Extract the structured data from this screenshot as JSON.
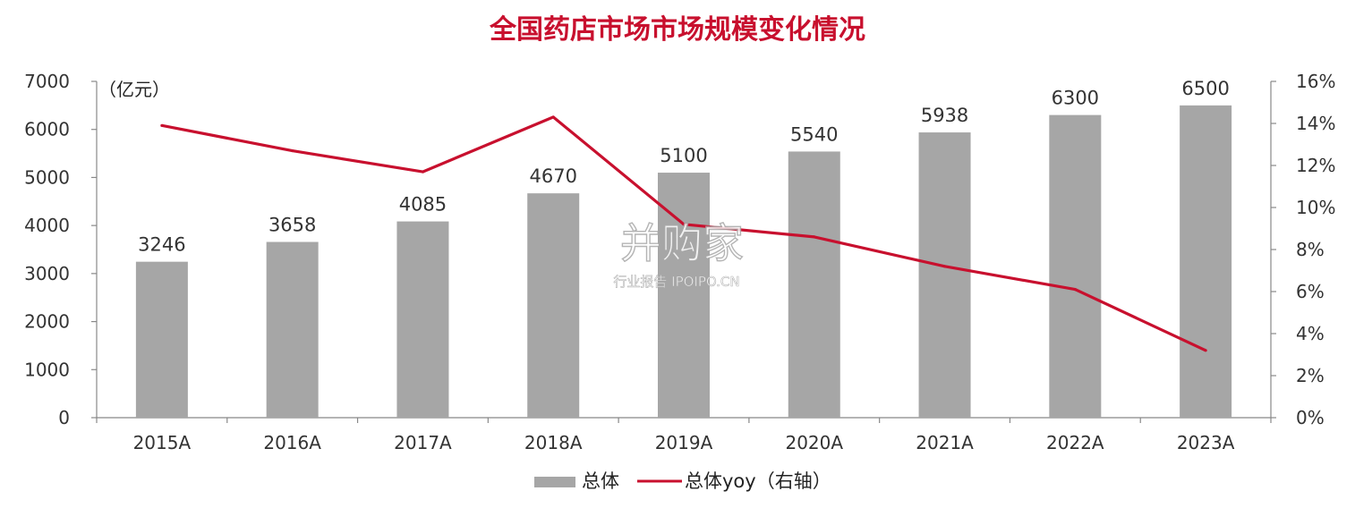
{
  "chart_data": {
    "type": "bar",
    "title": "全国药店市场市场规模变化情况",
    "unit_label": "（亿元）",
    "categories": [
      "2015A",
      "2016A",
      "2017A",
      "2018A",
      "2019A",
      "2020A",
      "2021A",
      "2022A",
      "2023A"
    ],
    "series": [
      {
        "name": "总体",
        "type": "bar",
        "axis": "left",
        "color": "#a6a6a6",
        "values": [
          3246,
          3658,
          4085,
          4670,
          5100,
          5540,
          5938,
          6300,
          6500
        ]
      },
      {
        "name": "总体yoy（右轴）",
        "type": "line",
        "axis": "right",
        "color": "#c8102e",
        "values": [
          13.9,
          12.7,
          11.7,
          14.3,
          9.2,
          8.6,
          7.2,
          6.1,
          3.2
        ]
      }
    ],
    "y_left": {
      "min": 0,
      "max": 7000,
      "ticks": [
        "0",
        "1000",
        "2000",
        "3000",
        "4000",
        "5000",
        "6000",
        "7000"
      ]
    },
    "y_right": {
      "min": 0,
      "max": 16,
      "ticks": [
        "0%",
        "2%",
        "4%",
        "6%",
        "8%",
        "10%",
        "12%",
        "14%",
        "16%"
      ]
    },
    "grid": false,
    "legend_position": "bottom"
  },
  "watermark": {
    "main": "并购家",
    "sub": "行业报告 IPOIPO.CN"
  }
}
